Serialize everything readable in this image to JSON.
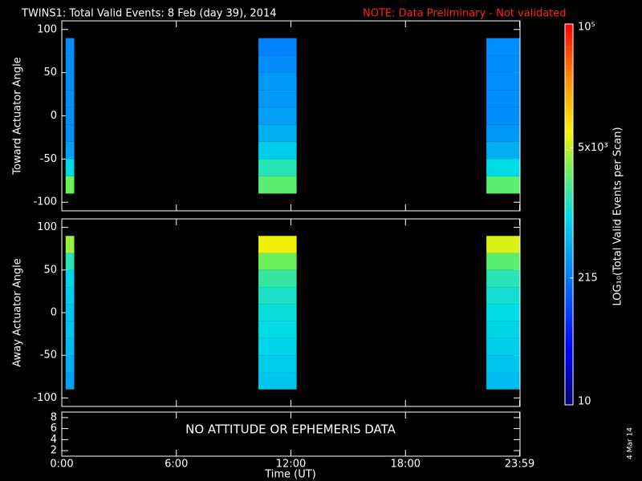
{
  "chart_data": {
    "type": "heatmap",
    "title": "TWINS1: Total Valid Events:  8 Feb (day  39), 2014",
    "note": "NOTE: Data Preliminary - Not validated",
    "stamp": "4 Mar 14",
    "x_label": "Time (UT)",
    "xlim": [
      0,
      24
    ],
    "xticks": [
      {
        "value": 0,
        "label": "0:00"
      },
      {
        "value": 6,
        "label": "6:00"
      },
      {
        "value": 12,
        "label": "12:00"
      },
      {
        "value": 18,
        "label": "18:00"
      },
      {
        "value": 23.98,
        "label": "23:59"
      }
    ],
    "x_ranges": [
      [
        0.2,
        0.65
      ],
      [
        10.3,
        12.3
      ],
      [
        22.24,
        24
      ]
    ],
    "y_edges": [
      -90,
      -70,
      -50,
      -30,
      -10,
      10,
      30,
      50,
      70,
      90
    ],
    "panels": [
      {
        "y_label": "Toward Actuator Angle",
        "ylim": [
          -110,
          110
        ],
        "yticks": [
          -100,
          -50,
          0,
          50,
          100
        ],
        "values": [
          [
            3000,
            1000,
            400,
            300,
            300,
            300,
            300,
            300,
            300
          ],
          [
            2500,
            1500,
            800,
            500,
            400,
            350,
            350,
            300,
            250
          ],
          [
            2500,
            1000,
            500,
            350,
            300,
            300,
            300,
            300,
            300
          ]
        ]
      },
      {
        "y_label": "Away Actuator Angle",
        "ylim": [
          -110,
          110
        ],
        "yticks": [
          -100,
          -50,
          0,
          50,
          100
        ],
        "values": [
          [
            400,
            500,
            600,
            700,
            700,
            800,
            900,
            1500,
            4000
          ],
          [
            700,
            800,
            900,
            1000,
            1100,
            1300,
            1700,
            3000,
            7000
          ],
          [
            600,
            700,
            800,
            900,
            1000,
            1200,
            1500,
            2500,
            6000
          ]
        ]
      }
    ],
    "info_panel": {
      "ylim": [
        1,
        9
      ],
      "yticks": [
        2,
        4,
        6,
        8
      ],
      "message": "NO ATTITUDE OR EPHEMERIS DATA"
    },
    "colorbar": {
      "label": "LOG₁₀(Total Valid Events per Scan)",
      "lim": [
        10,
        100000
      ],
      "log": true,
      "ticks": [
        10,
        215,
        {
          "value": 5000,
          "label": "5x10³"
        },
        {
          "value": 100000,
          "label": "10⁵"
        }
      ]
    }
  }
}
